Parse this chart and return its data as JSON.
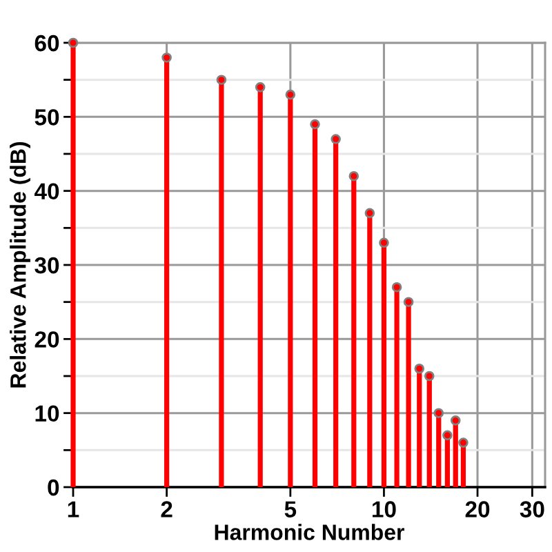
{
  "chart_data": {
    "type": "lollipop",
    "xlabel": "Harmonic Number",
    "ylabel": "Relative Amplitude (dB)",
    "x": [
      1,
      2,
      3,
      4,
      5,
      6,
      7,
      8,
      9,
      10,
      11,
      12,
      13,
      14,
      15,
      16,
      17,
      18
    ],
    "values": [
      60,
      58,
      55,
      54,
      53,
      49,
      47,
      42,
      37,
      33,
      27,
      25,
      16,
      15,
      10,
      7,
      9,
      6
    ],
    "color": "#ff0000",
    "marker": "circle",
    "log": "x",
    "grid": true,
    "xlim": [
      1,
      33
    ],
    "xticks": [
      1,
      2,
      5,
      10,
      20,
      30
    ],
    "ylim": [
      0,
      60
    ],
    "yticks": [
      0,
      {
        "value": 5,
        "label": null
      },
      10,
      {
        "value": 15,
        "label": null
      },
      20,
      {
        "value": 25,
        "label": null
      },
      30,
      {
        "value": 35,
        "label": null
      },
      40,
      {
        "value": 45,
        "label": null
      },
      50,
      {
        "value": 55,
        "label": null
      },
      60
    ]
  }
}
